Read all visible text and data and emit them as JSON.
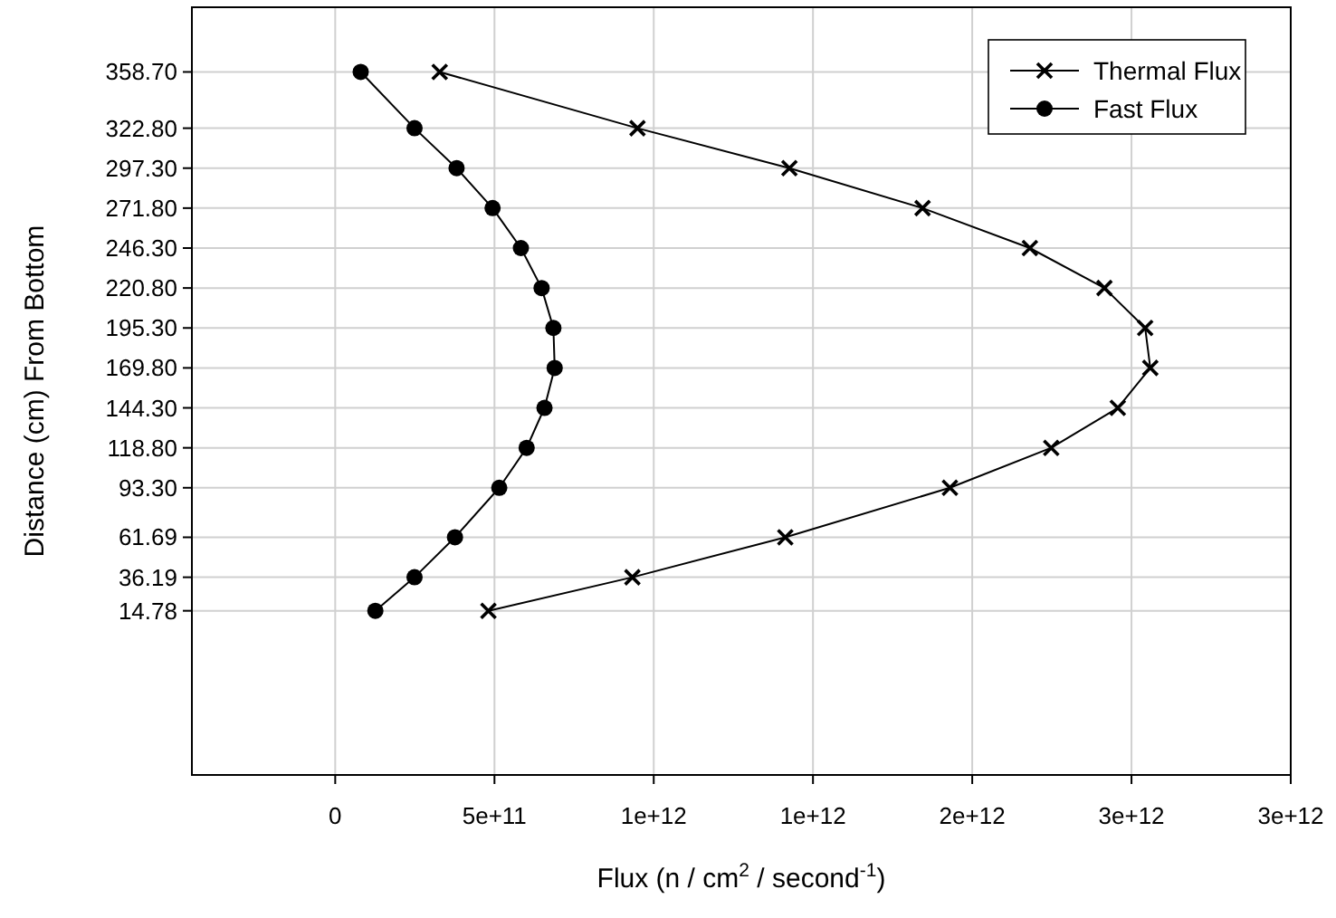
{
  "chart_data": {
    "type": "line",
    "xlabel": "Flux (n / cm$^{2}$ / second$^{-1}$)",
    "ylabel": "Distance (cm) From Bottom",
    "xlim": [
      -450000000000,
      3000000000000
    ],
    "xticks": [
      0,
      {
        "value": 500000000000,
        "label": "5e+11"
      },
      {
        "value": 1000000000000,
        "label": "1e+12"
      },
      {
        "value": 1500000000000,
        "label": "1e+12"
      },
      {
        "value": 2000000000000,
        "label": "2e+12"
      },
      {
        "value": 2500000000000,
        "label": "3e+12"
      },
      {
        "value": 3000000000000,
        "label": "3e+12"
      }
    ],
    "ylim": [
      -90,
      400
    ],
    "yticks": [
      {
        "value": 14.78,
        "label": "14.78"
      },
      {
        "value": 36.19,
        "label": "36.19"
      },
      {
        "value": 61.69,
        "label": "61.69"
      },
      {
        "value": 93.3,
        "label": "93.30"
      },
      {
        "value": 118.8,
        "label": "118.80"
      },
      {
        "value": 144.3,
        "label": "144.30"
      },
      {
        "value": 169.8,
        "label": "169.80"
      },
      {
        "value": 195.3,
        "label": "195.30"
      },
      {
        "value": 220.8,
        "label": "220.80"
      },
      {
        "value": 246.3,
        "label": "246.30"
      },
      {
        "value": 271.8,
        "label": "271.80"
      },
      {
        "value": 297.3,
        "label": "297.30"
      },
      {
        "value": 322.8,
        "label": "322.80"
      },
      {
        "value": 358.7,
        "label": "358.70"
      }
    ],
    "grid": true,
    "legend": "top right",
    "line_style": "solid",
    "series": [
      {
        "name": "Thermal Flux",
        "color": "#000000",
        "marker": "cross",
        "x": [
          328000000000.0,
          949000000000.0,
          1426000000000.0,
          1844000000000.0,
          2181000000000.0,
          2415000000000.0,
          2543000000000.0,
          2559000000000.0,
          2457000000000.0,
          2248000000000.0,
          1930000000000.0,
          1413000000000.0,
          933000000000.0,
          481000000000.0
        ],
        "values": [
          358.7,
          322.8,
          297.3,
          271.8,
          246.3,
          220.8,
          195.3,
          169.8,
          144.3,
          118.8,
          93.3,
          61.69,
          36.19,
          14.78
        ]
      },
      {
        "name": "Fast Flux",
        "color": "#000000",
        "marker": "circle",
        "x": [
          80000000000.0,
          249000000000.0,
          381000000000.0,
          494000000000.0,
          583000000000.0,
          648000000000.0,
          685000000000.0,
          689000000000.0,
          657000000000.0,
          601000000000.0,
          515000000000.0,
          376000000000.0,
          249000000000.0,
          126000000000.0
        ],
        "values": [
          358.7,
          322.8,
          297.3,
          271.8,
          246.3,
          220.8,
          195.3,
          169.8,
          144.3,
          118.8,
          93.3,
          61.69,
          36.19,
          14.78
        ]
      }
    ]
  }
}
